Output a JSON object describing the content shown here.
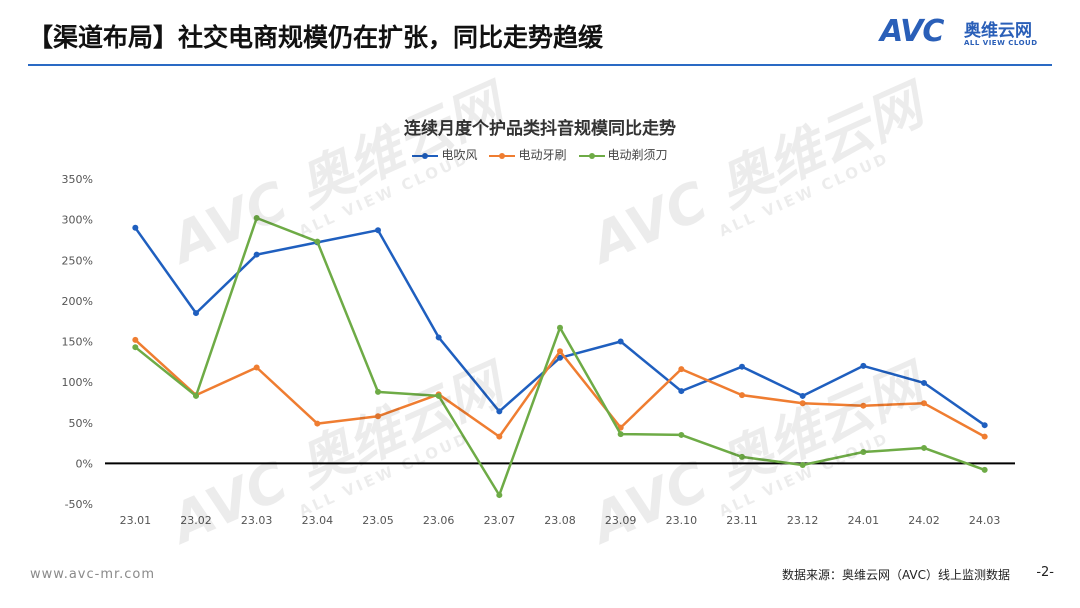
{
  "page": {
    "title": "【渠道布局】社交电商规模仍在扩张，同比走势趋缓",
    "logo_mark": "AVC",
    "logo_cn": "奥维云网",
    "logo_en": "ALL VIEW CLOUD",
    "footer_url": "www.avc-mr.com",
    "footer_source": "数据来源：奥维云网（AVC）线上监测数据",
    "page_number": "-2-",
    "watermark_mark": "AVC 奥维云网",
    "watermark_en": "ALL VIEW CLOUD",
    "brand_color": "#2a5fb8"
  },
  "chart_data": {
    "type": "line",
    "title": "连续月度个护品类抖音规模同比走势",
    "xlabel": "",
    "ylabel": "",
    "categories": [
      "23.01",
      "23.02",
      "23.03",
      "23.04",
      "23.05",
      "23.06",
      "23.07",
      "23.08",
      "23.09",
      "23.10",
      "23.11",
      "23.12",
      "24.01",
      "24.02",
      "24.03"
    ],
    "ylim": [
      -50,
      350
    ],
    "yticks": [
      -50,
      0,
      50,
      100,
      150,
      200,
      250,
      300,
      350
    ],
    "ytick_labels": [
      "-50%",
      "0%",
      "50%",
      "100%",
      "150%",
      "200%",
      "250%",
      "300%",
      "350%"
    ],
    "legend_position": "top-center",
    "grid": false,
    "series": [
      {
        "name": "电吹风",
        "color": "#1f5fbf",
        "values": [
          290,
          185,
          257,
          272,
          287,
          155,
          64,
          130,
          150,
          89,
          119,
          83,
          120,
          99,
          47
        ]
      },
      {
        "name": "电动牙刷",
        "color": "#ef7d31",
        "values": [
          152,
          84,
          118,
          49,
          58,
          85,
          33,
          138,
          44,
          116,
          84,
          74,
          71,
          74,
          33
        ]
      },
      {
        "name": "电动剃须刀",
        "color": "#6eab46",
        "values": [
          143,
          83,
          302,
          273,
          88,
          83,
          -39,
          167,
          36,
          35,
          8,
          -2,
          14,
          19,
          -8
        ]
      }
    ]
  }
}
